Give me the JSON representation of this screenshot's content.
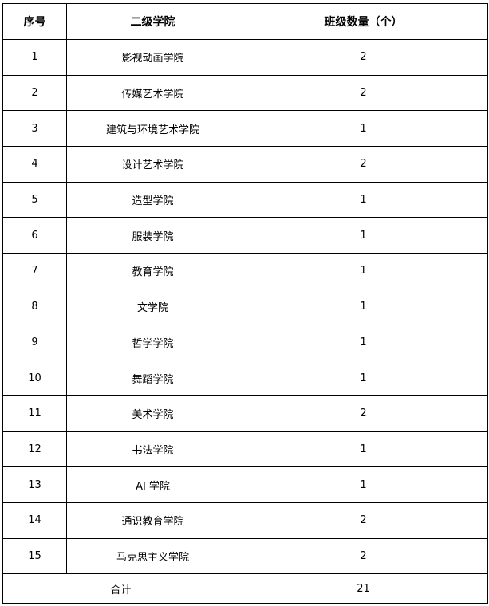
{
  "table": {
    "headers": [
      "序号",
      "二级学院",
      "班级数量（个）"
    ],
    "rows": [
      {
        "no": "1",
        "college": "影视动画学院",
        "count": "2"
      },
      {
        "no": "2",
        "college": "传媒艺术学院",
        "count": "2"
      },
      {
        "no": "3",
        "college": "建筑与环境艺术学院",
        "count": "1"
      },
      {
        "no": "4",
        "college": "设计艺术学院",
        "count": "2"
      },
      {
        "no": "5",
        "college": "造型学院",
        "count": "1"
      },
      {
        "no": "6",
        "college": "服装学院",
        "count": "1"
      },
      {
        "no": "7",
        "college": "教育学院",
        "count": "1"
      },
      {
        "no": "8",
        "college": "文学院",
        "count": "1"
      },
      {
        "no": "9",
        "college": "哲学学院",
        "count": "1"
      },
      {
        "no": "10",
        "college": "舞蹈学院",
        "count": "1"
      },
      {
        "no": "11",
        "college": "美术学院",
        "count": "2"
      },
      {
        "no": "12",
        "college": "书法学院",
        "count": "1"
      },
      {
        "no": "13",
        "college": "AI 学院",
        "count": "1"
      },
      {
        "no": "14",
        "college": "通识教育学院",
        "count": "2"
      },
      {
        "no": "15",
        "college": "马克思主义学院",
        "count": "2"
      }
    ],
    "total": {
      "label": "合计",
      "count": "21"
    }
  }
}
